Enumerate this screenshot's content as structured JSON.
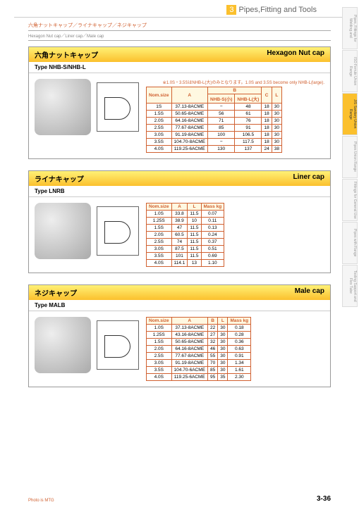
{
  "header": {
    "category_num": "3",
    "category_label": "Pipes,Fitting and Tools"
  },
  "subheader": {
    "jp": "六角ナットキャップ／ライナキャップ／ネジキャップ",
    "en": "Hexagon Nut cap／Liner cap／Male cap"
  },
  "sections": [
    {
      "title_jp": "六角ナットキャップ",
      "title_en": "Hexagon Nut cap",
      "type": "Type NHB-S/NHB-L",
      "note": "※1.0S・3.5SはNHB-L(大)のみとなります。1.0S and 3.5S become only NHB-L(large).",
      "columns": [
        "Nom.size",
        "A",
        "B NHB-S(小)",
        "B NHB-L(大)",
        "C",
        "L"
      ],
      "b_split": true,
      "rows": [
        [
          "1S",
          "37.13-8ACME",
          "−",
          "48",
          "18",
          "30"
        ],
        [
          "1.5S",
          "50.65-8ACME",
          "56",
          "61",
          "18",
          "30"
        ],
        [
          "2.0S",
          "64.16-8ACME",
          "71",
          "76",
          "18",
          "30"
        ],
        [
          "2.5S",
          "77.67-8ACME",
          "85",
          "91",
          "18",
          "30"
        ],
        [
          "3.0S",
          "91.19-8ACME",
          "100",
          "106.5",
          "18",
          "30"
        ],
        [
          "3.5S",
          "104.70-8ACME",
          "−",
          "117.5",
          "18",
          "30"
        ],
        [
          "4.0S",
          "119.25-6ACME",
          "130",
          "137",
          "24",
          "38"
        ]
      ]
    },
    {
      "title_jp": "ライナキャップ",
      "title_en": "Liner cap",
      "type": "Type LNRB",
      "columns": [
        "Nom.size",
        "A",
        "L",
        "Mass kg"
      ],
      "rows": [
        [
          "1.0S",
          "33.8",
          "11.5",
          "0.07"
        ],
        [
          "1.25S",
          "38.9",
          "10",
          "0.11"
        ],
        [
          "1.5S",
          "47",
          "11.5",
          "0.13"
        ],
        [
          "2.0S",
          "60.5",
          "11.5",
          "0.24"
        ],
        [
          "2.5S",
          "74",
          "11.5",
          "0.37"
        ],
        [
          "3.0S",
          "87.5",
          "11.5",
          "0.51"
        ],
        [
          "3.5S",
          "101",
          "11.5",
          "0.69"
        ],
        [
          "4.0S",
          "114.1",
          "13",
          "1.10"
        ]
      ]
    },
    {
      "title_jp": "ネジキャップ",
      "title_en": "Male cap",
      "type": "Type MALB",
      "columns": [
        "Nom.size",
        "A",
        "B",
        "L",
        "Mass kg"
      ],
      "rows": [
        [
          "1.0S",
          "37.13-8ACME",
          "22",
          "30",
          "0.18"
        ],
        [
          "1.25S",
          "43.16-8ACME",
          "27",
          "30",
          "0.28"
        ],
        [
          "1.5S",
          "50.65-8ACME",
          "32",
          "30",
          "0.36"
        ],
        [
          "2.0S",
          "64.16-8ACME",
          "46",
          "30",
          "0.63"
        ],
        [
          "2.5S",
          "77.67-8ACME",
          "55",
          "30",
          "0.91"
        ],
        [
          "3.0S",
          "91.19-8ACME",
          "70",
          "30",
          "1.34"
        ],
        [
          "3.5S",
          "104.70-6ACME",
          "85",
          "30",
          "1.61"
        ],
        [
          "4.0S",
          "119.25-6ACME",
          "95",
          "35",
          "2.30"
        ]
      ]
    }
  ],
  "tabs": [
    "Pipes, Fittings for Welding and",
    "ISO Ferrule Union Range",
    "JIS Sanitary Union Range",
    "Pipes Union Range",
    "Fittings for General Use",
    "Pipes with Flange",
    "Tooling Support and Flex Tube"
  ],
  "active_tab_index": 2,
  "page_number": "3-36",
  "photo_credit": "Photo is MTG"
}
